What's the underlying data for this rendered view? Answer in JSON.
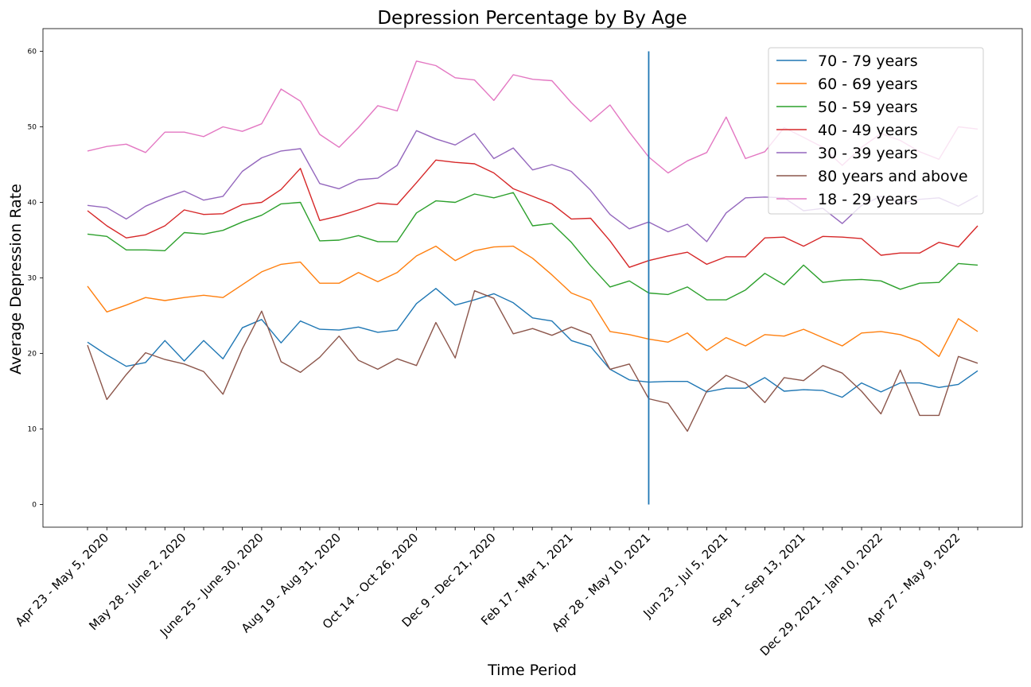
{
  "chart_data": {
    "type": "line",
    "title": "Depression Percentage by By Age",
    "xlabel": "Time Period",
    "ylabel": "Average Depression Rate",
    "ylim": [
      -3,
      63
    ],
    "yticks": [
      0,
      10,
      20,
      30,
      40,
      50,
      60
    ],
    "grid": false,
    "legend_position": "top-right",
    "x_tick_labels": [
      {
        "index": 1,
        "label": "Apr 23 - May 5, 2020"
      },
      {
        "index": 5,
        "label": "May 28 - June 2, 2020"
      },
      {
        "index": 9,
        "label": "June 25 - June 30, 2020"
      },
      {
        "index": 13,
        "label": "Aug 19 - Aug 31, 2020"
      },
      {
        "index": 17,
        "label": "Oct 14 - Oct 26, 2020"
      },
      {
        "index": 21,
        "label": "Dec 9 - Dec 21, 2020"
      },
      {
        "index": 25,
        "label": "Feb 17 - Mar 1, 2021"
      },
      {
        "index": 29,
        "label": "Apr 28 - May 10, 2021"
      },
      {
        "index": 33,
        "label": "Jun 23 - Jul 5, 2021"
      },
      {
        "index": 37,
        "label": "Sep 1 - Sep 13, 2021"
      },
      {
        "index": 41,
        "label": "Dec 29, 2021 - Jan 10, 2022"
      },
      {
        "index": 45,
        "label": "Apr 27 - May 9, 2022"
      }
    ],
    "vertical_line": {
      "x_index": 29,
      "y_from": 0,
      "y_to": 60,
      "color": "#1f77b4"
    },
    "series": [
      {
        "name": "70 - 79 years",
        "color": "#1f77b4",
        "values": [
          21.5,
          19.8,
          18.3,
          18.8,
          21.7,
          19.0,
          21.7,
          19.3,
          23.4,
          24.5,
          21.4,
          24.3,
          23.2,
          23.1,
          23.5,
          22.8,
          23.1,
          26.6,
          28.6,
          26.4,
          27.1,
          27.9,
          26.7,
          24.7,
          24.3,
          21.7,
          20.9,
          17.9,
          16.5,
          16.2,
          16.3,
          16.3,
          14.9,
          15.4,
          15.4,
          16.8,
          15.0,
          15.2,
          15.1,
          14.2,
          16.1,
          14.9,
          16.1,
          16.1,
          15.5,
          15.9,
          17.7
        ]
      },
      {
        "name": "60 - 69 years",
        "color": "#ff7f0e",
        "values": [
          28.9,
          25.5,
          26.4,
          27.4,
          27.0,
          27.4,
          27.7,
          27.4,
          29.1,
          30.8,
          31.8,
          32.1,
          29.3,
          29.3,
          30.7,
          29.5,
          30.7,
          32.9,
          34.2,
          32.3,
          33.6,
          34.1,
          34.2,
          32.6,
          30.4,
          28.0,
          27.0,
          22.9,
          22.5,
          21.9,
          21.5,
          22.7,
          20.4,
          22.1,
          21.0,
          22.5,
          22.3,
          23.2,
          22.1,
          21.0,
          22.7,
          22.9,
          22.5,
          21.6,
          19.6,
          24.6,
          22.9
        ]
      },
      {
        "name": "50 - 59 years",
        "color": "#2ca02c",
        "values": [
          35.8,
          35.5,
          33.7,
          33.7,
          33.6,
          36.0,
          35.8,
          36.3,
          37.4,
          38.3,
          39.8,
          40.0,
          34.9,
          35.0,
          35.6,
          34.8,
          34.8,
          38.6,
          40.2,
          40.0,
          41.1,
          40.6,
          41.3,
          36.9,
          37.2,
          34.7,
          31.6,
          28.8,
          29.6,
          28.0,
          27.8,
          28.8,
          27.1,
          27.1,
          28.4,
          30.6,
          29.1,
          31.7,
          29.4,
          29.7,
          29.8,
          29.6,
          28.5,
          29.3,
          29.4,
          31.9,
          31.7
        ]
      },
      {
        "name": "40 - 49 years",
        "color": "#d62728",
        "values": [
          38.9,
          36.9,
          35.3,
          35.7,
          36.9,
          39.0,
          38.4,
          38.5,
          39.7,
          40.0,
          41.7,
          44.5,
          37.6,
          38.2,
          39.0,
          39.9,
          39.7,
          42.6,
          45.6,
          45.3,
          45.1,
          43.9,
          41.8,
          40.8,
          39.8,
          37.8,
          37.9,
          34.9,
          31.4,
          32.3,
          32.9,
          33.4,
          31.8,
          32.8,
          32.8,
          35.3,
          35.4,
          34.2,
          35.5,
          35.4,
          35.2,
          33.0,
          33.3,
          33.3,
          34.7,
          34.1,
          36.9
        ]
      },
      {
        "name": "30 - 39 years",
        "color": "#9467bd",
        "values": [
          39.6,
          39.3,
          37.8,
          39.5,
          40.6,
          41.5,
          40.3,
          40.8,
          44.1,
          45.9,
          46.8,
          47.1,
          42.5,
          41.8,
          43.0,
          43.2,
          44.9,
          49.5,
          48.4,
          47.6,
          49.1,
          45.8,
          47.2,
          44.3,
          45.0,
          44.1,
          41.6,
          38.4,
          36.5,
          37.4,
          36.1,
          37.1,
          34.8,
          38.6,
          40.6,
          40.7,
          40.6,
          38.9,
          39.2,
          37.2,
          39.6,
          40.8,
          39.9,
          40.4,
          40.6,
          39.5,
          40.9
        ]
      },
      {
        "name": "80 years and above",
        "color": "#8c564b",
        "values": [
          21.1,
          13.9,
          17.2,
          20.1,
          19.2,
          18.6,
          17.6,
          14.6,
          20.6,
          25.6,
          18.9,
          17.5,
          19.5,
          22.3,
          19.1,
          17.9,
          19.3,
          18.4,
          24.1,
          19.4,
          28.3,
          27.3,
          22.6,
          23.3,
          22.4,
          23.5,
          22.5,
          17.9,
          18.6,
          14.0,
          13.4,
          9.7,
          15.0,
          17.1,
          16.1,
          13.5,
          16.8,
          16.4,
          18.4,
          17.4,
          15.0,
          12.0,
          17.8,
          11.8,
          11.8,
          19.6,
          18.7
        ]
      },
      {
        "name": "18 - 29 years",
        "color": "#e377c2",
        "values": [
          46.8,
          47.4,
          47.7,
          46.6,
          49.3,
          49.3,
          48.7,
          50.0,
          49.4,
          50.4,
          55.0,
          53.4,
          49.0,
          47.3,
          49.9,
          52.8,
          52.1,
          58.7,
          58.1,
          56.5,
          56.2,
          53.5,
          56.9,
          56.3,
          56.1,
          53.2,
          50.7,
          52.9,
          49.3,
          46.0,
          43.9,
          45.5,
          46.6,
          51.3,
          45.8,
          46.7,
          49.9,
          48.6,
          47.3,
          44.9,
          47.3,
          49.1,
          48.2,
          46.7,
          45.7,
          50.0,
          49.7
        ]
      }
    ]
  }
}
